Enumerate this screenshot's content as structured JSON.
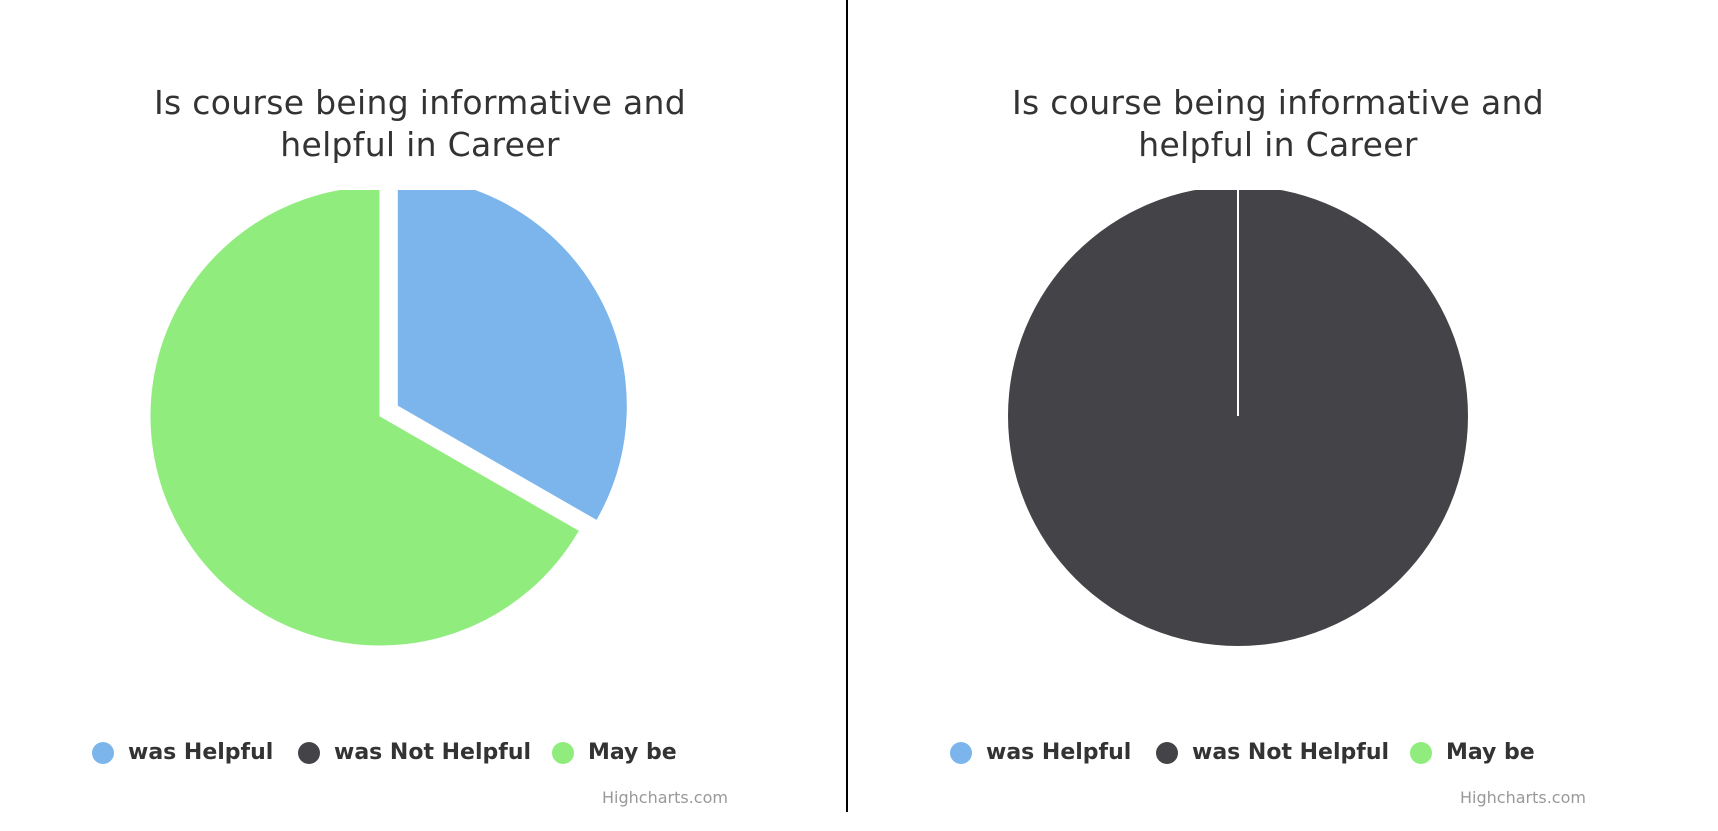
{
  "colors": {
    "was_helpful": "#7cb5ec",
    "was_not_helpful": "#434348",
    "may_be": "#90ed7d"
  },
  "credit": "Highcharts.com",
  "chart_data": [
    {
      "type": "pie",
      "title_lines": [
        "Is course being informative and",
        "helpful in Career"
      ],
      "legend": "bottom",
      "categories": [
        "was Helpful",
        "was Not Helpful",
        "May be"
      ],
      "values": [
        33.3,
        0,
        66.7
      ],
      "sliced": [
        true,
        false,
        false
      ]
    },
    {
      "type": "pie",
      "title_lines": [
        "Is course being informative and",
        "helpful in Career"
      ],
      "legend": "bottom",
      "categories": [
        "was Helpful",
        "was Not Helpful",
        "May be"
      ],
      "values": [
        0,
        100,
        0
      ],
      "sliced": [
        false,
        false,
        false
      ]
    }
  ]
}
